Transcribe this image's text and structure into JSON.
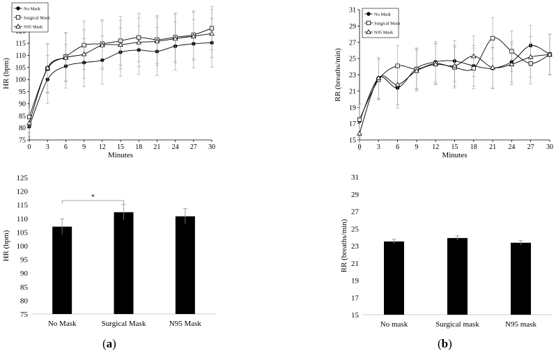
{
  "figure": {
    "panel_a_label": "a",
    "panel_b_label": "b"
  },
  "chart_data": [
    {
      "id": "hr_line",
      "type": "line",
      "title": "",
      "xlabel": "Minutes",
      "ylabel": "HR (bpm)",
      "x": [
        0,
        3,
        6,
        9,
        12,
        15,
        18,
        21,
        24,
        27,
        30
      ],
      "xlim": [
        0,
        30
      ],
      "ylim": [
        75,
        130
      ],
      "yticks": [
        75,
        80,
        85,
        90,
        95,
        100,
        105,
        110,
        115,
        120,
        125,
        130
      ],
      "legend_position": "top-left",
      "series": [
        {
          "name": "No Mask",
          "marker": "circle-filled",
          "values": [
            80.5,
            100.0,
            105.5,
            107.0,
            108.0,
            111.3,
            112.2,
            111.6,
            113.8,
            114.8,
            115.2
          ],
          "errors": [
            4,
            10,
            9,
            10,
            10,
            10,
            10,
            10,
            10,
            10,
            10
          ]
        },
        {
          "name": "Surgical Mask",
          "marker": "square-open",
          "values": [
            84.5,
            104.5,
            109.5,
            114.2,
            114.8,
            116.0,
            117.4,
            116.5,
            117.5,
            118.5,
            121.2
          ],
          "errors": [
            4,
            10,
            10,
            10,
            10,
            10,
            10,
            10,
            10,
            10,
            9
          ]
        },
        {
          "name": "N95 Mask",
          "marker": "triangle-open",
          "values": [
            82.0,
            104.8,
            109.0,
            110.5,
            114.2,
            114.4,
            115.4,
            115.8,
            116.9,
            117.9,
            119.0
          ],
          "errors": [
            4,
            10,
            10,
            10,
            10,
            10,
            10,
            10,
            10,
            10,
            10
          ]
        }
      ]
    },
    {
      "id": "rr_line",
      "type": "line",
      "title": "",
      "xlabel": "Minutes",
      "ylabel": "RR (breaths/min)",
      "x": [
        0,
        3,
        6,
        9,
        12,
        15,
        18,
        21,
        24,
        27,
        30
      ],
      "xlim": [
        0,
        30
      ],
      "ylim": [
        15,
        31
      ],
      "yticks": [
        15,
        17,
        19,
        21,
        23,
        25,
        27,
        29,
        31
      ],
      "legend_position": "top-left",
      "series": [
        {
          "name": "No Mask",
          "marker": "circle-filled",
          "values": [
            17.3,
            22.6,
            21.4,
            23.8,
            24.6,
            24.7,
            24.1,
            23.8,
            24.6,
            26.6,
            25.5
          ],
          "errors": [
            2,
            2.5,
            2.5,
            2.5,
            2.5,
            2.5,
            2.5,
            2.5,
            2.5,
            2.5,
            2.5
          ]
        },
        {
          "name": "Surgical Mask",
          "marker": "square-open",
          "values": [
            17.5,
            22.4,
            24.1,
            23.7,
            24.4,
            23.9,
            23.8,
            27.5,
            25.9,
            24.4,
            25.5
          ],
          "errors": [
            2,
            2.5,
            2.5,
            2.5,
            2.5,
            2.5,
            2.5,
            2.5,
            2.5,
            2.5,
            2.5
          ]
        },
        {
          "name": "N95 Mask",
          "marker": "triangle-open",
          "values": [
            15.8,
            22.6,
            21.8,
            23.5,
            24.3,
            24.1,
            25.3,
            23.9,
            24.3,
            25.2,
            25.5
          ],
          "errors": [
            2,
            2.5,
            2.5,
            2.5,
            2.5,
            2.5,
            2.5,
            2.5,
            2.5,
            2.5,
            2.5
          ]
        }
      ]
    },
    {
      "id": "hr_bar",
      "type": "bar",
      "title": "",
      "xlabel": "",
      "ylabel": "HR (bpm)",
      "categories": [
        "No Mask",
        "Surgical Mask",
        "N95 Mask"
      ],
      "values": [
        107.0,
        112.3,
        110.8
      ],
      "errors": [
        2.8,
        2.8,
        2.8
      ],
      "ylim": [
        75,
        125
      ],
      "yticks": [
        75,
        80,
        85,
        90,
        95,
        100,
        105,
        110,
        115,
        120,
        125
      ],
      "significance": {
        "from": "No Mask",
        "to": "Surgical Mask",
        "label": "*"
      }
    },
    {
      "id": "rr_bar",
      "type": "bar",
      "title": "",
      "xlabel": "",
      "ylabel": "RR (breaths/min)",
      "categories": [
        "No mask",
        "Surgical mask",
        "N95 mask"
      ],
      "values": [
        23.5,
        23.9,
        23.35
      ],
      "errors": [
        0.25,
        0.25,
        0.25
      ],
      "ylim": [
        15,
        31
      ],
      "yticks": [
        15,
        17,
        19,
        21,
        23,
        25,
        27,
        29,
        31
      ]
    }
  ]
}
